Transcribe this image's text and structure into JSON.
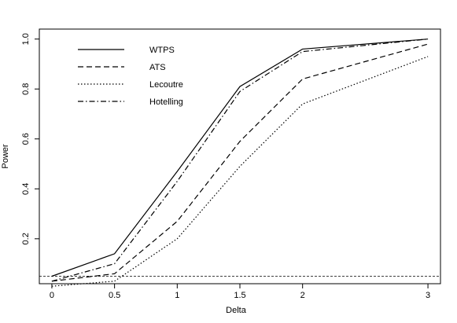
{
  "chart_data": {
    "type": "line",
    "title": "",
    "xlabel": "Delta",
    "ylabel": "Power",
    "x": [
      0,
      0.5,
      1,
      1.5,
      2,
      3
    ],
    "x_tick_labels": [
      "0",
      "0.5",
      "1",
      "1.5",
      "2",
      "3"
    ],
    "y_ticks": [
      0.2,
      0.4,
      0.6,
      0.8,
      1.0
    ],
    "y_tick_labels": [
      "0.2",
      "0.4",
      "0.6",
      "0.8",
      "1.0"
    ],
    "xlim": [
      -0.1,
      3.1
    ],
    "ylim": [
      0.02,
      1.04
    ],
    "grid": false,
    "legend_position": "top-left",
    "reference_line": {
      "y": 0.05,
      "style": "dashed"
    },
    "series": [
      {
        "name": "WTPS",
        "style": "solid",
        "values": [
          0.05,
          0.14,
          0.47,
          0.81,
          0.96,
          1.0
        ]
      },
      {
        "name": "ATS",
        "style": "dashed",
        "values": [
          0.03,
          0.06,
          0.27,
          0.59,
          0.84,
          0.98
        ]
      },
      {
        "name": "Lecoutre",
        "style": "dotted",
        "values": [
          0.01,
          0.03,
          0.2,
          0.49,
          0.74,
          0.93
        ]
      },
      {
        "name": "Hotelling",
        "style": "dashdot",
        "values": [
          0.03,
          0.1,
          0.43,
          0.79,
          0.95,
          1.0
        ]
      }
    ]
  }
}
